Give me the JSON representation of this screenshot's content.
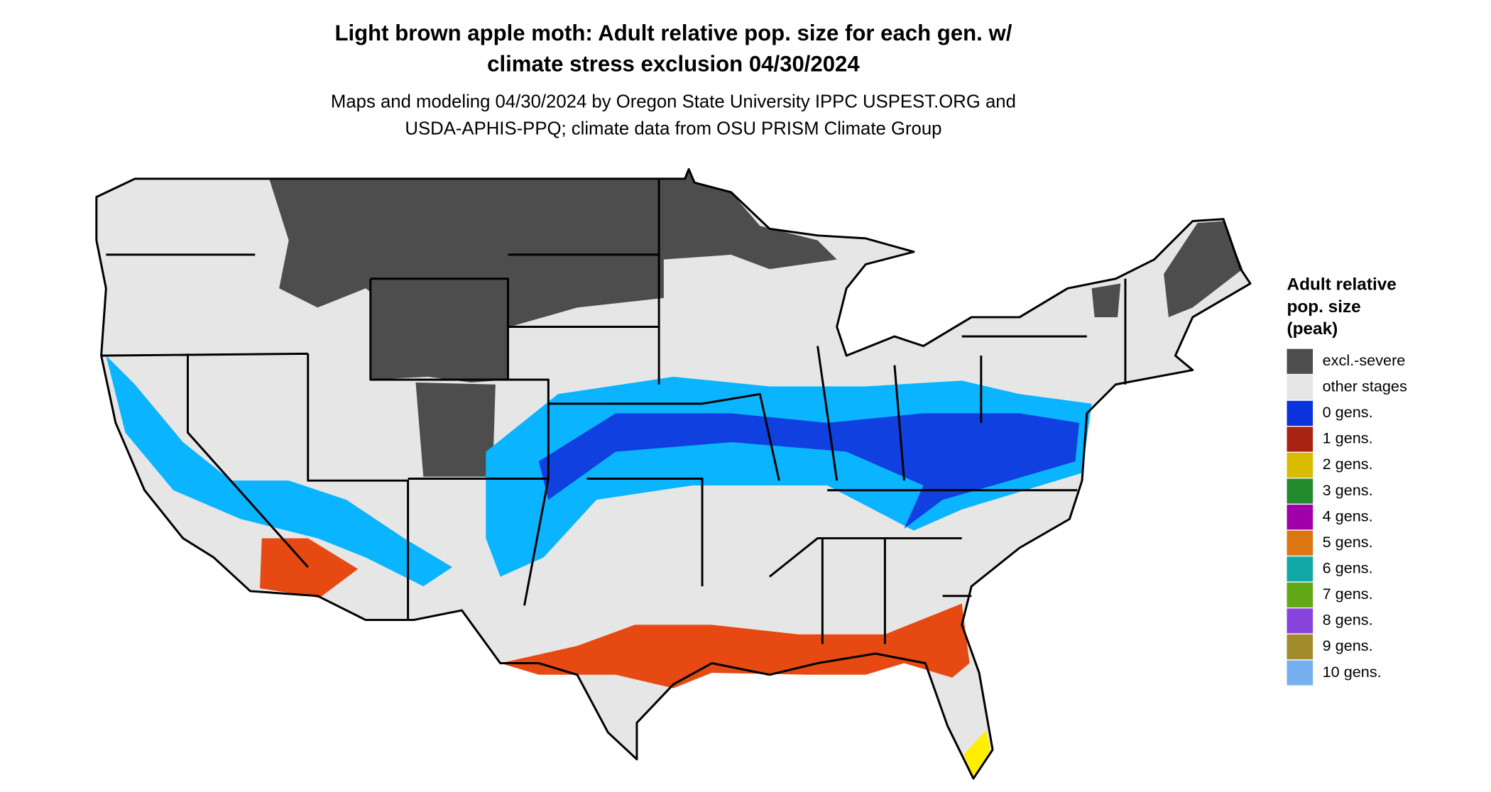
{
  "title": [
    "Light brown apple moth: Adult relative pop. size for each gen. w/",
    "climate stress exclusion 04/30/2024"
  ],
  "subtitle": [
    "Maps and modeling 04/30/2024 by Oregon State University IPPC USPEST.ORG and",
    "USDA-APHIS-PPQ; climate data from OSU PRISM Climate Group"
  ],
  "legend": {
    "title": [
      "Adult relative",
      "pop. size",
      "(peak)"
    ],
    "items": [
      {
        "label": "excl.-severe",
        "color": "#4d4d4d"
      },
      {
        "label": "other stages",
        "color": "#e6e6e6"
      },
      {
        "label": "0 gens.",
        "color": "#0a33dd"
      },
      {
        "label": "1 gens.",
        "color": "#aa2211"
      },
      {
        "label": "2 gens.",
        "color": "#d9bb00"
      },
      {
        "label": "3 gens.",
        "color": "#238a2e"
      },
      {
        "label": "4 gens.",
        "color": "#a000a8"
      },
      {
        "label": "5 gens.",
        "color": "#dd7511"
      },
      {
        "label": "6 gens.",
        "color": "#12a8a5"
      },
      {
        "label": "7 gens.",
        "color": "#62a814"
      },
      {
        "label": "8 gens.",
        "color": "#8844dd"
      },
      {
        "label": "9 gens.",
        "color": "#a08a2a"
      },
      {
        "label": "10 gens.",
        "color": "#77b0f0"
      }
    ]
  }
}
